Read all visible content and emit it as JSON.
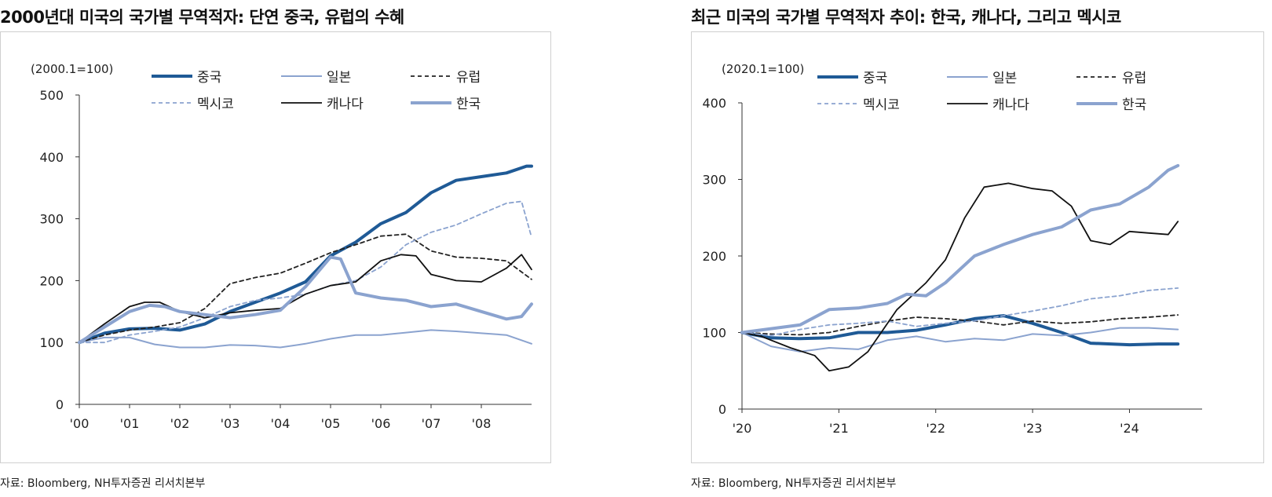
{
  "panels": [
    {
      "title": "2000년대 미국의 국가별 무역적자: 단연 중국, 유럽의 수혜",
      "source": "자료: Bloomberg, NH투자증권 리서치본부",
      "chart_data": {
        "type": "line",
        "unit_label": "(2000.1=100)",
        "ylim": [
          0,
          500
        ],
        "yticks": [
          "0",
          "100",
          "200",
          "300",
          "400",
          "500"
        ],
        "xlim": [
          2000.0,
          2009.0
        ],
        "xticks": [
          {
            "label": "'00",
            "value": 2000.0
          },
          {
            "label": "'01",
            "value": 2001.0
          },
          {
            "label": "'02",
            "value": 2002.0
          },
          {
            "label": "'03",
            "value": 2003.0
          },
          {
            "label": "'04",
            "value": 2004.0
          },
          {
            "label": "'05",
            "value": 2005.0
          },
          {
            "label": "'06",
            "value": 2006.0
          },
          {
            "label": "'07",
            "value": 2007.0
          },
          {
            "label": "'08",
            "value": 2008.0
          }
        ],
        "legend_placement": "top",
        "series": [
          {
            "name": "중국",
            "color": "#1f5a96",
            "width": 4,
            "dash": "",
            "x": [
              2000.0,
              2000.5,
              2001.0,
              2001.5,
              2002.0,
              2002.5,
              2003.0,
              2003.5,
              2004.0,
              2004.5,
              2005.0,
              2005.5,
              2006.0,
              2006.5,
              2007.0,
              2007.5,
              2008.0,
              2008.5,
              2008.9,
              2009.0
            ],
            "y": [
              100,
              115,
              122,
              123,
              120,
              130,
              150,
              165,
              180,
              198,
              240,
              262,
              292,
              310,
              342,
              362,
              368,
              374,
              385,
              385
            ]
          },
          {
            "name": "일본",
            "color": "#8ba3cf",
            "width": 2,
            "dash": "",
            "x": [
              2000.0,
              2000.5,
              2001.0,
              2001.5,
              2002.0,
              2002.5,
              2003.0,
              2003.5,
              2004.0,
              2004.5,
              2005.0,
              2005.5,
              2006.0,
              2006.5,
              2007.0,
              2007.5,
              2008.0,
              2008.5,
              2009.0
            ],
            "y": [
              100,
              108,
              108,
              97,
              92,
              92,
              96,
              95,
              92,
              98,
              106,
              112,
              112,
              116,
              120,
              118,
              115,
              112,
              98
            ]
          },
          {
            "name": "유럽",
            "color": "#222222",
            "width": 1.8,
            "dash": "5,4",
            "x": [
              2000.0,
              2000.5,
              2001.0,
              2001.5,
              2002.0,
              2002.5,
              2003.0,
              2003.5,
              2004.0,
              2004.5,
              2005.0,
              2005.5,
              2006.0,
              2006.5,
              2007.0,
              2007.5,
              2008.0,
              2008.5,
              2009.0
            ],
            "y": [
              100,
              112,
              120,
              125,
              132,
              155,
              195,
              205,
              212,
              228,
              245,
              258,
              272,
              275,
              248,
              238,
              236,
              232,
              202
            ]
          },
          {
            "name": "멕시코",
            "color": "#8ba3cf",
            "width": 1.8,
            "dash": "5,4",
            "x": [
              2000.0,
              2000.5,
              2001.0,
              2001.5,
              2002.0,
              2002.5,
              2003.0,
              2003.5,
              2004.0,
              2004.5,
              2005.0,
              2005.5,
              2006.0,
              2006.5,
              2007.0,
              2007.5,
              2008.0,
              2008.5,
              2008.8,
              2009.0
            ],
            "y": [
              100,
              100,
              112,
              118,
              125,
              140,
              158,
              168,
              172,
              178,
              192,
              200,
              222,
              258,
              278,
              290,
              308,
              325,
              328,
              270
            ]
          },
          {
            "name": "캐나다",
            "color": "#111111",
            "width": 1.8,
            "dash": "",
            "x": [
              2000.0,
              2000.5,
              2001.0,
              2001.3,
              2001.6,
              2002.0,
              2002.5,
              2003.0,
              2003.5,
              2004.0,
              2004.5,
              2005.0,
              2005.5,
              2006.0,
              2006.4,
              2006.7,
              2007.0,
              2007.5,
              2008.0,
              2008.5,
              2008.8,
              2009.0
            ],
            "y": [
              100,
              130,
              158,
              165,
              165,
              150,
              140,
              148,
              152,
              155,
              178,
              192,
              198,
              232,
              242,
              240,
              210,
              200,
              198,
              220,
              242,
              218
            ]
          },
          {
            "name": "한국",
            "color": "#8ba3cf",
            "width": 4,
            "dash": "",
            "x": [
              2000.0,
              2000.5,
              2001.0,
              2001.4,
              2001.7,
              2002.0,
              2002.5,
              2003.0,
              2003.5,
              2004.0,
              2004.5,
              2005.0,
              2005.2,
              2005.5,
              2006.0,
              2006.5,
              2007.0,
              2007.5,
              2008.0,
              2008.5,
              2008.8,
              2009.0
            ],
            "y": [
              100,
              125,
              150,
              160,
              158,
              150,
              145,
              140,
              145,
              152,
              190,
              238,
              235,
              180,
              172,
              168,
              158,
              162,
              150,
              138,
              142,
              162
            ]
          }
        ]
      }
    },
    {
      "title": "최근 미국의 국가별 무역적자 추이: 한국, 캐나다, 그리고 멕시코",
      "source": "자료: Bloomberg, NH투자증권 리서치본부",
      "chart_data": {
        "type": "line",
        "unit_label": "(2020.1=100)",
        "ylim": [
          0,
          400
        ],
        "yticks": [
          "0",
          "100",
          "200",
          "300",
          "400"
        ],
        "xlim": [
          2020.0,
          2024.75
        ],
        "xticks": [
          {
            "label": "'20",
            "value": 2020.0
          },
          {
            "label": "'21",
            "value": 2021.0
          },
          {
            "label": "'22",
            "value": 2022.0
          },
          {
            "label": "'23",
            "value": 2023.0
          },
          {
            "label": "'24",
            "value": 2024.0
          }
        ],
        "legend_placement": "top",
        "series": [
          {
            "name": "중국",
            "color": "#1f5a96",
            "width": 4,
            "dash": "",
            "x": [
              2020.0,
              2020.3,
              2020.6,
              2020.9,
              2021.2,
              2021.5,
              2021.8,
              2022.1,
              2022.4,
              2022.7,
              2023.0,
              2023.3,
              2023.6,
              2024.0,
              2024.3,
              2024.5
            ],
            "y": [
              100,
              93,
              92,
              93,
              100,
              100,
              103,
              110,
              118,
              122,
              112,
              100,
              86,
              84,
              85,
              85
            ]
          },
          {
            "name": "일본",
            "color": "#8ba3cf",
            "width": 2,
            "dash": "",
            "x": [
              2020.0,
              2020.3,
              2020.6,
              2020.9,
              2021.2,
              2021.5,
              2021.8,
              2022.1,
              2022.4,
              2022.7,
              2023.0,
              2023.3,
              2023.6,
              2023.9,
              2024.2,
              2024.5
            ],
            "y": [
              100,
              82,
              75,
              80,
              78,
              90,
              95,
              88,
              92,
              90,
              98,
              96,
              100,
              106,
              106,
              104
            ]
          },
          {
            "name": "유럽",
            "color": "#222222",
            "width": 1.8,
            "dash": "5,4",
            "x": [
              2020.0,
              2020.3,
              2020.6,
              2020.9,
              2021.2,
              2021.5,
              2021.8,
              2022.1,
              2022.4,
              2022.7,
              2023.0,
              2023.3,
              2023.6,
              2023.9,
              2024.2,
              2024.5
            ],
            "y": [
              100,
              98,
              97,
              100,
              108,
              115,
              120,
              118,
              115,
              110,
              115,
              112,
              114,
              118,
              120,
              123
            ]
          },
          {
            "name": "멕시코",
            "color": "#8ba3cf",
            "width": 1.8,
            "dash": "5,4",
            "x": [
              2020.0,
              2020.3,
              2020.6,
              2020.9,
              2021.2,
              2021.5,
              2021.8,
              2022.1,
              2022.4,
              2022.7,
              2023.0,
              2023.3,
              2023.6,
              2023.9,
              2024.2,
              2024.5
            ],
            "y": [
              100,
              96,
              104,
              110,
              112,
              115,
              108,
              112,
              115,
              122,
              128,
              135,
              144,
              148,
              155,
              158
            ]
          },
          {
            "name": "캐나다",
            "color": "#111111",
            "width": 1.8,
            "dash": "",
            "x": [
              2020.0,
              2020.2,
              2020.5,
              2020.75,
              2020.9,
              2021.1,
              2021.3,
              2021.6,
              2021.9,
              2022.1,
              2022.3,
              2022.5,
              2022.75,
              2023.0,
              2023.2,
              2023.4,
              2023.6,
              2023.8,
              2024.0,
              2024.2,
              2024.4,
              2024.5
            ],
            "y": [
              100,
              95,
              80,
              70,
              50,
              55,
              75,
              130,
              165,
              195,
              250,
              290,
              295,
              288,
              285,
              265,
              220,
              215,
              232,
              230,
              228,
              245
            ]
          },
          {
            "name": "한국",
            "color": "#8ba3cf",
            "width": 4,
            "dash": "",
            "x": [
              2020.0,
              2020.3,
              2020.6,
              2020.9,
              2021.2,
              2021.5,
              2021.7,
              2021.9,
              2022.1,
              2022.4,
              2022.7,
              2023.0,
              2023.3,
              2023.6,
              2023.9,
              2024.2,
              2024.4,
              2024.5
            ],
            "y": [
              100,
              105,
              110,
              130,
              132,
              138,
              150,
              148,
              165,
              200,
              215,
              228,
              238,
              260,
              268,
              290,
              312,
              318
            ]
          }
        ]
      }
    }
  ]
}
